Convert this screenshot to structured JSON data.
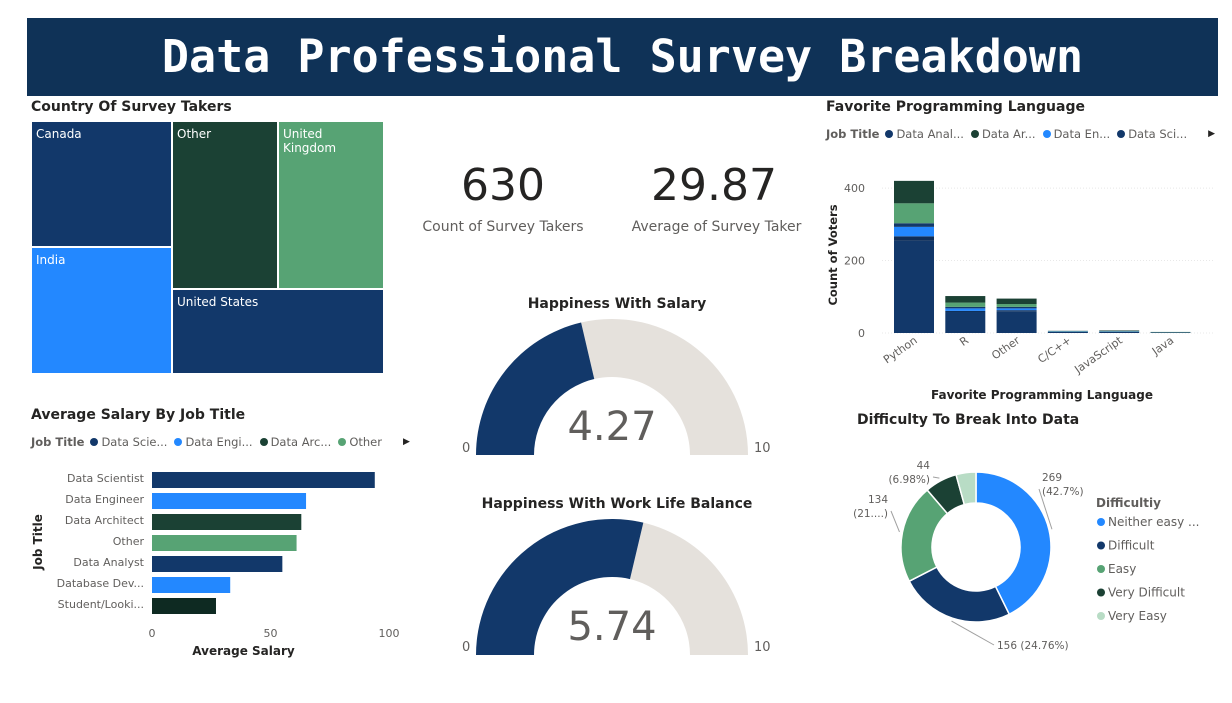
{
  "page": {
    "title": "Data Professional Survey Breakdown"
  },
  "country": {
    "title": "Country Of Survey Takers",
    "items": [
      {
        "label": "Canada",
        "color": "#12386a"
      },
      {
        "label": "Other",
        "color": "#1b4134"
      },
      {
        "label": "United Kingdom",
        "color": "#57a374"
      },
      {
        "label": "India",
        "color": "#2388ff"
      },
      {
        "label": "United States",
        "color": "#12386a"
      }
    ]
  },
  "kpis": [
    {
      "value": "630",
      "label": "Count of Survey Takers"
    },
    {
      "value": "29.87",
      "label": "Average of Survey Taker"
    }
  ],
  "gauges": [
    {
      "title": "Happiness With Salary",
      "value": 4.27,
      "value_text": "4.27",
      "min_text": "0",
      "max_text": "10",
      "min": 0,
      "max": 10,
      "fill": "#12386a",
      "track": "#e5e1dc"
    },
    {
      "title": "Happiness With Work Life Balance",
      "value": 5.74,
      "value_text": "5.74",
      "min_text": "0",
      "max_text": "10",
      "min": 0,
      "max": 10,
      "fill": "#12386a",
      "track": "#e5e1dc"
    }
  ],
  "salary_legend": {
    "title": "Job Title",
    "items": [
      {
        "label": "Data Scie...",
        "color": "#12386a"
      },
      {
        "label": "Data Engi...",
        "color": "#2388ff"
      },
      {
        "label": "Data Arc...",
        "color": "#1b4134"
      },
      {
        "label": "Other",
        "color": "#57a374"
      }
    ]
  },
  "lang_legend": {
    "title": "Job Title",
    "items": [
      {
        "label": "Data Anal...",
        "color": "#12386a"
      },
      {
        "label": "Data Ar...",
        "color": "#1b4134"
      },
      {
        "label": "Data En...",
        "color": "#2388ff"
      },
      {
        "label": "Data Sci...",
        "color": "#12386a"
      }
    ]
  },
  "difficulty_legend": {
    "title": "Difficultiy",
    "items": [
      {
        "label": "Neither easy ...",
        "color": "#2388ff"
      },
      {
        "label": "Difficult",
        "color": "#12386a"
      },
      {
        "label": "Easy",
        "color": "#57a374"
      },
      {
        "label": "Very Difficult",
        "color": "#1b4134"
      },
      {
        "label": "Very Easy",
        "color": "#b8dcc5"
      }
    ]
  },
  "chart_data": [
    {
      "type": "bar",
      "orientation": "horizontal",
      "title": "Average Salary By Job Title",
      "xlabel": "Average Salary",
      "ylabel": "Job Title",
      "categories": [
        "Data Scientist",
        "Data Engineer",
        "Data Architect",
        "Other",
        "Data Analyst",
        "Database Dev...",
        "Student/Looki..."
      ],
      "values": [
        94,
        65,
        63,
        61,
        55,
        33,
        27
      ],
      "colors": [
        "#12386a",
        "#2388ff",
        "#1b4134",
        "#57a374",
        "#12386a",
        "#2388ff",
        "#0e2a22"
      ],
      "xlim": [
        0,
        100
      ],
      "xticks": [
        "0",
        "50",
        "100"
      ]
    },
    {
      "type": "bar",
      "stacked": true,
      "title": "Favorite Programming Language",
      "xlabel": "Favorite Programming Language",
      "ylabel": "Count of Voters",
      "categories": [
        "Python",
        "R",
        "Other",
        "C/C++",
        "JavaScript",
        "Java"
      ],
      "ylim": [
        0,
        450
      ],
      "yticks": [
        "0",
        "200",
        "400"
      ],
      "series": [
        {
          "values": [
            255,
            58,
            60,
            3,
            3,
            2
          ],
          "color": "#12386a"
        },
        {
          "values": [
            12,
            3,
            3,
            0,
            0,
            0
          ],
          "color": "#0f2e58"
        },
        {
          "values": [
            26,
            7,
            5,
            1,
            1,
            0
          ],
          "color": "#2388ff"
        },
        {
          "values": [
            10,
            4,
            4,
            0,
            0,
            0
          ],
          "color": "#12386a"
        },
        {
          "values": [
            55,
            12,
            8,
            1,
            1,
            1
          ],
          "color": "#57a374"
        },
        {
          "values": [
            62,
            18,
            15,
            1,
            2,
            0
          ],
          "color": "#1b4134"
        }
      ]
    },
    {
      "type": "pie",
      "donut": true,
      "title": "Difficulty To Break Into Data",
      "labels": [
        "Neither easy nor difficult",
        "Difficult",
        "Easy",
        "Very Difficult",
        "Very Easy"
      ],
      "values": [
        269,
        156,
        134,
        44,
        27
      ],
      "colors": [
        "#2388ff",
        "#12386a",
        "#57a374",
        "#1b4134",
        "#b8dcc5"
      ],
      "data_labels": [
        {
          "line1": "269",
          "line2": "(42.7%)"
        },
        {
          "line1": "156 (24.76%)",
          "line2": ""
        },
        {
          "line1": "134",
          "line2": "(21....)"
        },
        {
          "line1": "44",
          "line2": "(6.98%)"
        },
        {
          "line1": "",
          "line2": ""
        }
      ]
    }
  ]
}
